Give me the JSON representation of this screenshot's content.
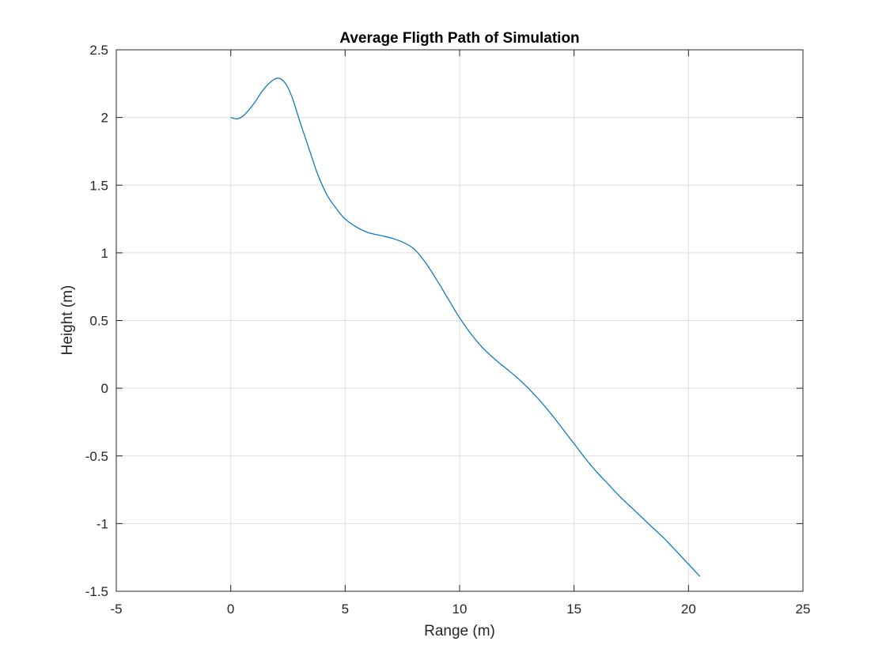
{
  "chart_data": {
    "type": "line",
    "title": "Average Fligth Path of Simulation",
    "xlabel": "Range (m)",
    "ylabel": "Height (m)",
    "xlim": [
      -5,
      25
    ],
    "ylim": [
      -1.5,
      2.5
    ],
    "xticks": [
      -5,
      0,
      5,
      10,
      15,
      20,
      25
    ],
    "yticks": [
      -1.5,
      -1,
      -0.5,
      0,
      0.5,
      1,
      1.5,
      2,
      2.5
    ],
    "xtick_labels": [
      "-5",
      "0",
      "5",
      "10",
      "15",
      "20",
      "25"
    ],
    "ytick_labels": [
      "-1.5",
      "-1",
      "-0.5",
      "0",
      "0.5",
      "1",
      "1.5",
      "2",
      "2.5"
    ],
    "grid": true,
    "line_color": "#0072bd",
    "series": [
      {
        "x": [
          0,
          0.3,
          0.6,
          1.0,
          1.4,
          1.8,
          2.1,
          2.4,
          2.7,
          3.0,
          3.4,
          3.8,
          4.2,
          4.6,
          5.0,
          5.5,
          6.0,
          6.5,
          7.0,
          7.5,
          8.0,
          8.5,
          9.0,
          9.5,
          10.0,
          10.5,
          11.0,
          11.5,
          12.0,
          12.5,
          13.0,
          13.5,
          14.0,
          14.5,
          15.0,
          15.5,
          16.0,
          16.5,
          17.0,
          17.5,
          18.0,
          18.5,
          19.0,
          19.5,
          20.0,
          20.5
        ],
        "y": [
          2.0,
          1.99,
          2.02,
          2.1,
          2.2,
          2.27,
          2.29,
          2.25,
          2.14,
          1.98,
          1.78,
          1.58,
          1.43,
          1.33,
          1.25,
          1.19,
          1.15,
          1.13,
          1.11,
          1.08,
          1.03,
          0.93,
          0.8,
          0.66,
          0.52,
          0.4,
          0.3,
          0.22,
          0.15,
          0.08,
          0.0,
          -0.09,
          -0.19,
          -0.3,
          -0.41,
          -0.52,
          -0.62,
          -0.71,
          -0.8,
          -0.88,
          -0.96,
          -1.04,
          -1.12,
          -1.21,
          -1.3,
          -1.39
        ]
      }
    ]
  }
}
